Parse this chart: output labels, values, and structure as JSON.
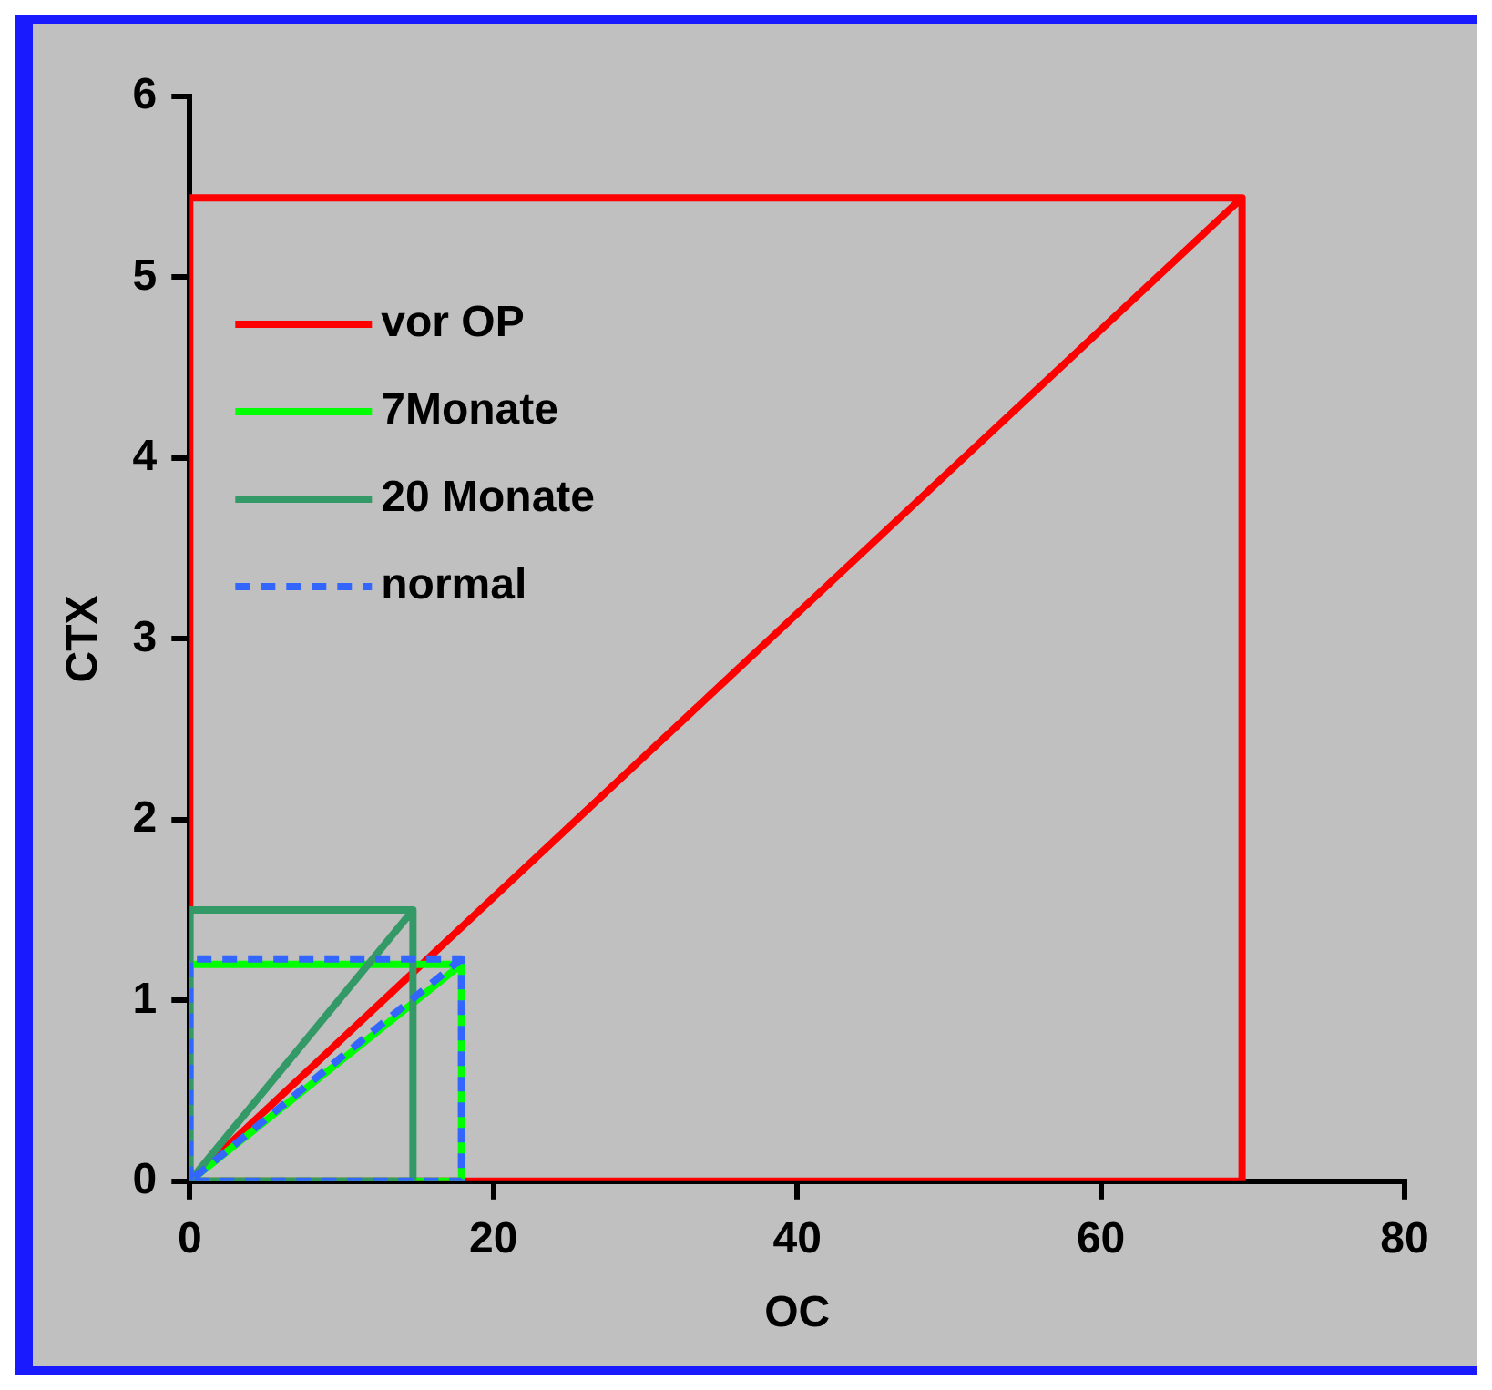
{
  "chart_data": {
    "type": "line",
    "xlabel": "OC",
    "ylabel": "CTX",
    "xlim": [
      0,
      80
    ],
    "xticks": [
      0,
      20,
      40,
      60,
      80
    ],
    "ylim": [
      0,
      6
    ],
    "yticks": [
      0,
      1,
      2,
      3,
      4,
      5,
      6
    ],
    "grid": false,
    "legend": "top left",
    "marker": "none",
    "series": [
      {
        "name": "vor OP",
        "color": "#ff0000",
        "line_style": "solid",
        "x": [
          0,
          0,
          69.3,
          69.3,
          0,
          69.3
        ],
        "values": [
          0,
          5.44,
          5.44,
          0,
          0,
          5.44
        ]
      },
      {
        "name": "7Monate",
        "color": "#00ff00",
        "line_style": "solid",
        "x": [
          0,
          0,
          17.9,
          17.9,
          0,
          17.9
        ],
        "values": [
          0,
          1.2,
          1.2,
          0,
          0,
          1.2
        ]
      },
      {
        "name": "20 Monate",
        "color": "#339966",
        "line_style": "solid",
        "x": [
          0,
          0,
          14.7,
          14.7,
          0,
          14.7
        ],
        "values": [
          0,
          1.5,
          1.5,
          0,
          0,
          1.5
        ]
      },
      {
        "name": "normal",
        "color": "#3366ff",
        "line_style": "dashed",
        "x": [
          0,
          0,
          17.9,
          17.9,
          0,
          17.9
        ],
        "values": [
          0,
          1.23,
          1.23,
          0,
          0,
          1.23
        ]
      }
    ]
  }
}
